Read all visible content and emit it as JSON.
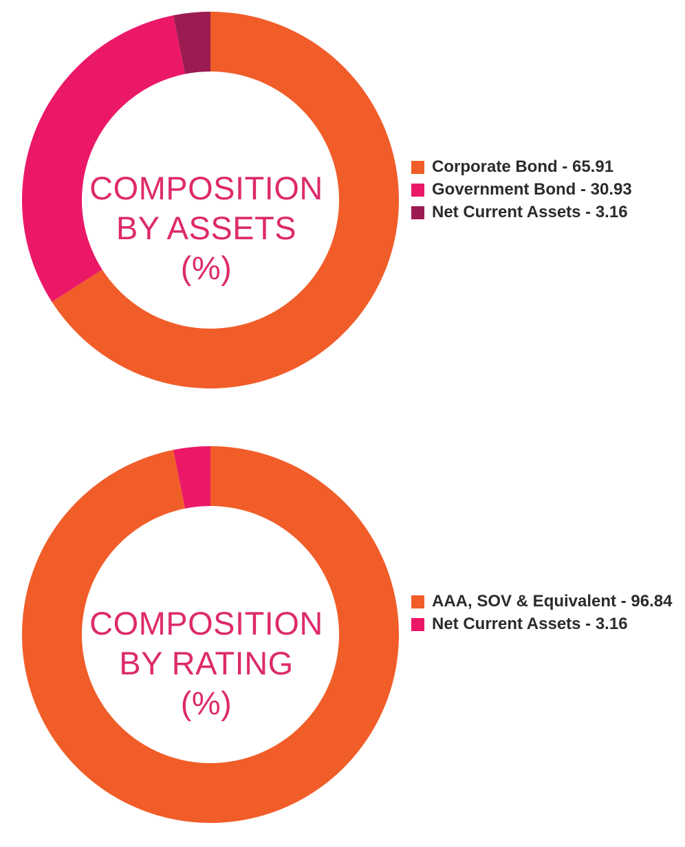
{
  "colors": {
    "corporate_bond": "#f15d29",
    "government_bond": "#eb1868",
    "net_current_assets_assets": "#9c1b52",
    "aaa_sov": "#f15d29",
    "net_current_assets_rating": "#eb1868",
    "center_text": "#dd2a6b",
    "background": "#ffffff"
  },
  "chart_data": [
    {
      "type": "pie",
      "title_lines": [
        "COMPOSITION",
        "BY ASSETS",
        "(%)"
      ],
      "slices": [
        {
          "label": "Corporate Bond",
          "value": 65.91,
          "legend_text": "Corporate Bond - 65.91",
          "color": "#f15d29"
        },
        {
          "label": "Government Bond",
          "value": 30.93,
          "legend_text": "Government Bond - 30.93",
          "color": "#eb1868"
        },
        {
          "label": "Net Current Assets",
          "value": 3.16,
          "legend_text": "Net Current Assets - 3.16",
          "color": "#9c1b52"
        }
      ],
      "legend_position": "right"
    },
    {
      "type": "pie",
      "title_lines": [
        "COMPOSITION",
        "BY RATING",
        "(%)"
      ],
      "slices": [
        {
          "label": "AAA, SOV & Equivalent",
          "value": 96.84,
          "legend_text": "AAA, SOV & Equivalent - 96.84",
          "color": "#f15d29"
        },
        {
          "label": "Net Current Assets",
          "value": 3.16,
          "legend_text": "Net Current Assets - 3.16",
          "color": "#eb1868"
        }
      ],
      "legend_position": "right"
    }
  ]
}
